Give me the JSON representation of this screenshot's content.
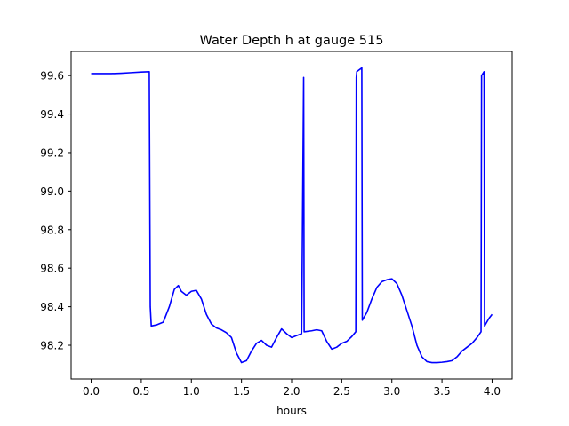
{
  "chart_data": {
    "type": "line",
    "title": "Water Depth h at gauge 515",
    "xlabel": "hours",
    "ylabel": "",
    "xlim": [
      -0.2,
      4.2
    ],
    "ylim": [
      98.025,
      99.725
    ],
    "xticks": [
      0.0,
      0.5,
      1.0,
      1.5,
      2.0,
      2.5,
      3.0,
      3.5,
      4.0
    ],
    "xtick_labels": [
      "0.0",
      "0.5",
      "1.0",
      "1.5",
      "2.0",
      "2.5",
      "3.0",
      "3.5",
      "4.0"
    ],
    "yticks": [
      98.2,
      98.4,
      98.6,
      98.8,
      99.0,
      99.2,
      99.4,
      99.6
    ],
    "ytick_labels": [
      "98.2",
      "98.4",
      "98.6",
      "98.8",
      "99.0",
      "99.2",
      "99.4",
      "99.6"
    ],
    "grid": false,
    "legend": "none",
    "series": [
      {
        "color": "#0000ff",
        "x": [
          0.0,
          0.1,
          0.2,
          0.3,
          0.4,
          0.5,
          0.58,
          0.59,
          0.6,
          0.65,
          0.72,
          0.78,
          0.83,
          0.87,
          0.9,
          0.95,
          1.0,
          1.05,
          1.1,
          1.15,
          1.2,
          1.25,
          1.3,
          1.35,
          1.4,
          1.45,
          1.5,
          1.55,
          1.6,
          1.65,
          1.7,
          1.75,
          1.8,
          1.85,
          1.9,
          1.95,
          2.0,
          2.05,
          2.1,
          2.12,
          2.125,
          2.13,
          2.2,
          2.25,
          2.3,
          2.35,
          2.4,
          2.45,
          2.5,
          2.55,
          2.6,
          2.64,
          2.645,
          2.65,
          2.7,
          2.705,
          2.75,
          2.8,
          2.85,
          2.9,
          2.95,
          3.0,
          3.05,
          3.1,
          3.15,
          3.2,
          3.25,
          3.3,
          3.35,
          3.4,
          3.45,
          3.5,
          3.55,
          3.6,
          3.65,
          3.7,
          3.75,
          3.8,
          3.85,
          3.89,
          3.895,
          3.92,
          3.925,
          3.97,
          4.0
        ],
        "y": [
          99.61,
          99.61,
          99.61,
          99.612,
          99.615,
          99.618,
          99.62,
          98.4,
          98.3,
          98.305,
          98.32,
          98.4,
          98.49,
          98.51,
          98.48,
          98.46,
          98.48,
          98.485,
          98.44,
          98.36,
          98.31,
          98.29,
          98.28,
          98.265,
          98.24,
          98.16,
          98.11,
          98.12,
          98.17,
          98.21,
          98.225,
          98.2,
          98.19,
          98.24,
          98.285,
          98.26,
          98.24,
          98.25,
          98.26,
          99.59,
          98.27,
          98.27,
          98.275,
          98.28,
          98.275,
          98.22,
          98.18,
          98.19,
          98.21,
          98.22,
          98.245,
          98.27,
          99.59,
          99.62,
          99.64,
          98.33,
          98.37,
          98.44,
          98.5,
          98.53,
          98.54,
          98.545,
          98.52,
          98.46,
          98.38,
          98.3,
          98.2,
          98.14,
          98.115,
          98.11,
          98.11,
          98.112,
          98.115,
          98.12,
          98.14,
          98.17,
          98.19,
          98.21,
          98.24,
          98.27,
          99.6,
          99.62,
          98.3,
          98.34,
          98.36
        ]
      }
    ]
  }
}
